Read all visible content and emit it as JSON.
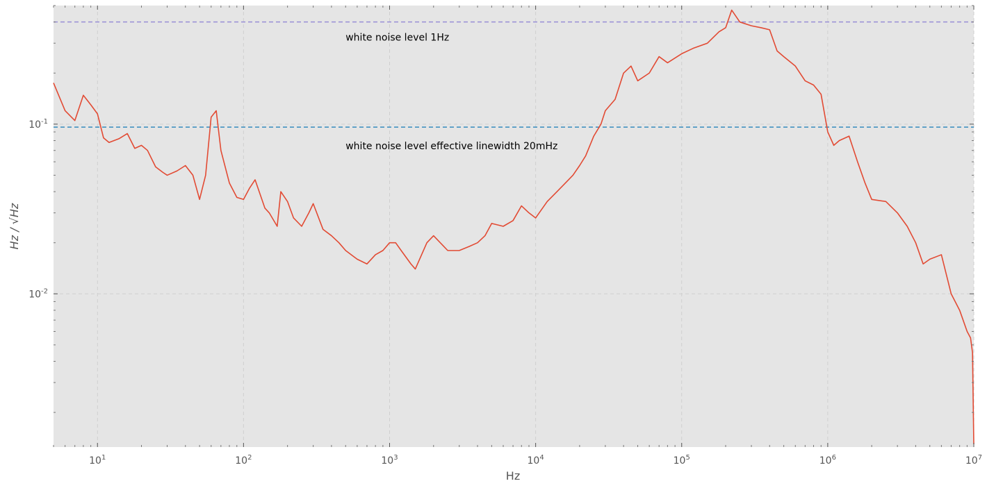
{
  "chart_data": {
    "type": "line",
    "title": "",
    "xlabel": "Hz",
    "ylabel": "Hz / √Hz",
    "xscale": "log",
    "yscale": "log",
    "xlim": [
      5,
      10000000
    ],
    "ylim": [
      0.00125,
      0.5
    ],
    "grid": true,
    "legend": "none",
    "x_ticks": [
      {
        "value": 10,
        "base": "10",
        "exp": "1"
      },
      {
        "value": 100,
        "base": "10",
        "exp": "2"
      },
      {
        "value": 1000,
        "base": "10",
        "exp": "3"
      },
      {
        "value": 10000,
        "base": "10",
        "exp": "4"
      },
      {
        "value": 100000,
        "base": "10",
        "exp": "5"
      },
      {
        "value": 1000000,
        "base": "10",
        "exp": "6"
      },
      {
        "value": 10000000,
        "base": "10",
        "exp": "7"
      }
    ],
    "y_ticks": [
      {
        "value": 0.1,
        "base": "10",
        "exp": "-1"
      },
      {
        "value": 0.01,
        "base": "10",
        "exp": "-2"
      }
    ],
    "series": [
      {
        "color": "#E24A33",
        "x": [
          5,
          6,
          7,
          8,
          9,
          10,
          11,
          12,
          14,
          16,
          18,
          20,
          22,
          25,
          28,
          30,
          35,
          40,
          45,
          50,
          55,
          60,
          65,
          70,
          80,
          90,
          100,
          110,
          120,
          140,
          150,
          170,
          180,
          200,
          220,
          250,
          280,
          300,
          350,
          400,
          450,
          500,
          600,
          700,
          800,
          900,
          1000,
          1100,
          1200,
          1400,
          1500,
          1800,
          2000,
          2500,
          3000,
          3500,
          4000,
          4500,
          5000,
          6000,
          7000,
          8000,
          9000,
          10000,
          12000,
          14000,
          16000,
          18000,
          20000,
          22000,
          25000,
          28000,
          30000,
          35000,
          40000,
          45000,
          50000,
          60000,
          70000,
          80000,
          100000,
          120000,
          150000,
          180000,
          200000,
          220000,
          250000,
          300000,
          350000,
          400000,
          450000,
          500000,
          600000,
          700000,
          800000,
          900000,
          1000000,
          1100000,
          1200000,
          1400000,
          1600000,
          1800000,
          2000000,
          2500000,
          3000000,
          3500000,
          4000000,
          4500000,
          5000000,
          6000000,
          7000000,
          8000000,
          9000000,
          9500000,
          9800000,
          10000000
        ],
        "y": [
          0.175,
          0.12,
          0.105,
          0.148,
          0.13,
          0.115,
          0.083,
          0.078,
          0.082,
          0.088,
          0.072,
          0.075,
          0.07,
          0.056,
          0.052,
          0.05,
          0.053,
          0.057,
          0.05,
          0.036,
          0.05,
          0.11,
          0.12,
          0.07,
          0.045,
          0.037,
          0.036,
          0.042,
          0.047,
          0.032,
          0.03,
          0.025,
          0.04,
          0.035,
          0.028,
          0.025,
          0.03,
          0.034,
          0.024,
          0.022,
          0.02,
          0.018,
          0.016,
          0.015,
          0.017,
          0.018,
          0.02,
          0.02,
          0.018,
          0.015,
          0.014,
          0.02,
          0.022,
          0.018,
          0.018,
          0.019,
          0.02,
          0.022,
          0.026,
          0.025,
          0.027,
          0.033,
          0.03,
          0.028,
          0.035,
          0.04,
          0.045,
          0.05,
          0.057,
          0.065,
          0.085,
          0.1,
          0.12,
          0.14,
          0.2,
          0.22,
          0.18,
          0.2,
          0.25,
          0.23,
          0.26,
          0.28,
          0.3,
          0.35,
          0.37,
          0.47,
          0.4,
          0.38,
          0.37,
          0.36,
          0.27,
          0.25,
          0.22,
          0.18,
          0.17,
          0.15,
          0.09,
          0.075,
          0.08,
          0.085,
          0.06,
          0.045,
          0.036,
          0.035,
          0.03,
          0.025,
          0.02,
          0.015,
          0.016,
          0.017,
          0.01,
          0.008,
          0.006,
          0.0055,
          0.0045,
          0.0013
        ]
      }
    ],
    "hlines": [
      {
        "y": 0.4,
        "color": "#988ED5",
        "label": "white noise level 1Hz",
        "label_x": 500,
        "label_y": 0.31
      },
      {
        "y": 0.096,
        "color": "#348ABD",
        "label": "white noise level effective linewidth 20mHz",
        "label_x": 500,
        "label_y": 0.071
      }
    ]
  }
}
